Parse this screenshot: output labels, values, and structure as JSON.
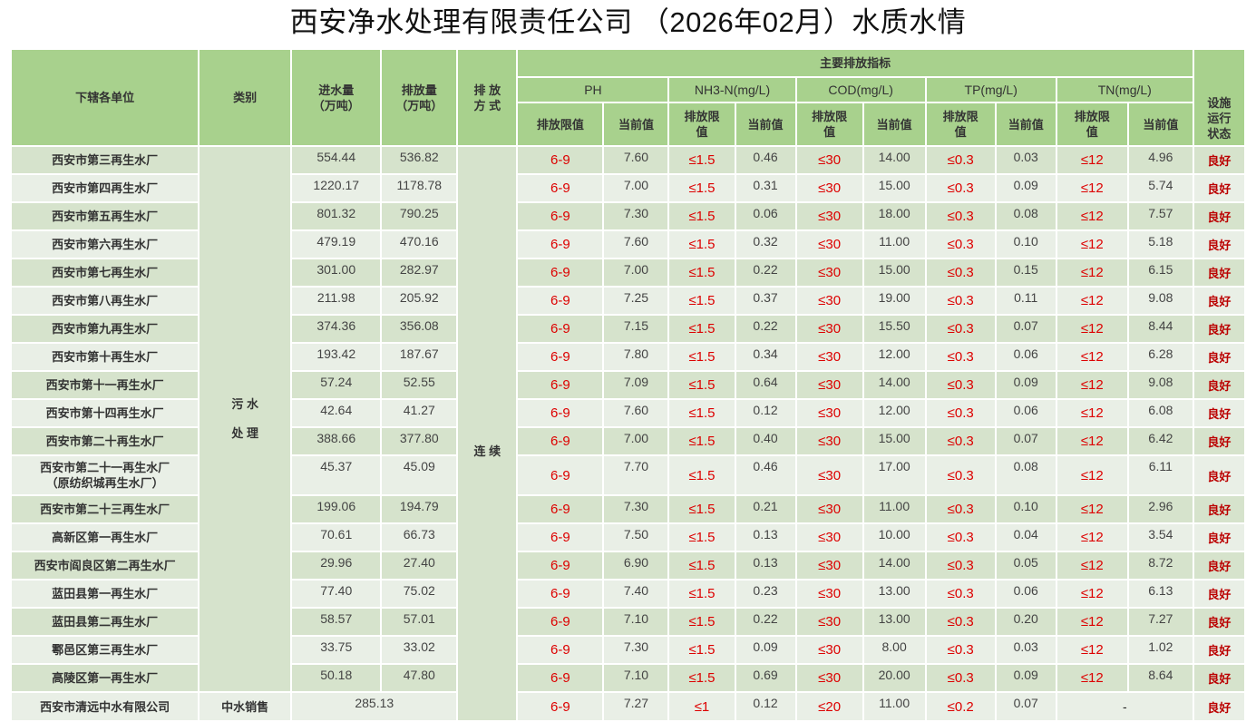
{
  "title": "西安净水处理有限责任公司 （2026年02月）水质水情",
  "headers": {
    "unit": "下辖各单位",
    "category": "类别",
    "inflow": "进水量\n（万吨）",
    "outflow": "排放量\n（万吨）",
    "method": "排 放\n方 式",
    "indicators": "主要排放指标",
    "ph": "PH",
    "nh3": "NH3-N(mg/L)",
    "cod": "COD(mg/L)",
    "tp": "TP(mg/L)",
    "tn": "TN(mg/L)",
    "limit": "排放限值",
    "limit_wrap": "排放限\n值",
    "current": "当前值",
    "status": "设施\n运行\n状态"
  },
  "category_sewage": "污 水\n\n处 理",
  "method_value": "连 续",
  "limits": {
    "ph": "6-9",
    "nh3": "≤1.5",
    "cod": "≤30",
    "tp": "≤0.3",
    "tn": "≤12"
  },
  "rows": [
    {
      "name": "西安市第三再生水厂",
      "in": "554.44",
      "out": "536.82",
      "ph": "7.60",
      "nh3": "0.46",
      "cod": "14.00",
      "tp": "0.03",
      "tn": "4.96",
      "status": "良好"
    },
    {
      "name": "西安市第四再生水厂",
      "in": "1220.17",
      "out": "1178.78",
      "ph": "7.00",
      "nh3": "0.31",
      "cod": "15.00",
      "tp": "0.09",
      "tn": "5.74",
      "status": "良好"
    },
    {
      "name": "西安市第五再生水厂",
      "in": "801.32",
      "out": "790.25",
      "ph": "7.30",
      "nh3": "0.06",
      "cod": "18.00",
      "tp": "0.08",
      "tn": "7.57",
      "status": "良好"
    },
    {
      "name": "西安市第六再生水厂",
      "in": "479.19",
      "out": "470.16",
      "ph": "7.60",
      "nh3": "0.32",
      "cod": "11.00",
      "tp": "0.10",
      "tn": "5.18",
      "status": "良好"
    },
    {
      "name": "西安市第七再生水厂",
      "in": "301.00",
      "out": "282.97",
      "ph": "7.00",
      "nh3": "0.22",
      "cod": "15.00",
      "tp": "0.15",
      "tn": "6.15",
      "status": "良好"
    },
    {
      "name": "西安市第八再生水厂",
      "in": "211.98",
      "out": "205.92",
      "ph": "7.25",
      "nh3": "0.37",
      "cod": "19.00",
      "tp": "0.11",
      "tn": "9.08",
      "status": "良好"
    },
    {
      "name": "西安市第九再生水厂",
      "in": "374.36",
      "out": "356.08",
      "ph": "7.15",
      "nh3": "0.22",
      "cod": "15.50",
      "tp": "0.07",
      "tn": "8.44",
      "status": "良好"
    },
    {
      "name": "西安市第十再生水厂",
      "in": "193.42",
      "out": "187.67",
      "ph": "7.80",
      "nh3": "0.34",
      "cod": "12.00",
      "tp": "0.06",
      "tn": "6.28",
      "status": "良好"
    },
    {
      "name": "西安市第十一再生水厂",
      "in": "57.24",
      "out": "52.55",
      "ph": "7.09",
      "nh3": "0.64",
      "cod": "14.00",
      "tp": "0.09",
      "tn": "9.08",
      "status": "良好"
    },
    {
      "name": "西安市第十四再生水厂",
      "in": "42.64",
      "out": "41.27",
      "ph": "7.60",
      "nh3": "0.12",
      "cod": "12.00",
      "tp": "0.06",
      "tn": "6.08",
      "status": "良好"
    },
    {
      "name": "西安市第二十再生水厂",
      "in": "388.66",
      "out": "377.80",
      "ph": "7.00",
      "nh3": "0.40",
      "cod": "15.00",
      "tp": "0.07",
      "tn": "6.42",
      "status": "良好"
    },
    {
      "name": "西安市第二十一再生水厂\n（原纺织城再生水厂）",
      "in": "45.37",
      "out": "45.09",
      "ph": "7.70",
      "nh3": "0.46",
      "cod": "17.00",
      "tp": "0.08",
      "tn": "6.11",
      "status": "良好"
    },
    {
      "name": "西安市第二十三再生水厂",
      "in": "199.06",
      "out": "194.79",
      "ph": "7.30",
      "nh3": "0.21",
      "cod": "11.00",
      "tp": "0.10",
      "tn": "2.96",
      "status": "良好"
    },
    {
      "name": "高新区第一再生水厂",
      "in": "70.61",
      "out": "66.73",
      "ph": "7.50",
      "nh3": "0.13",
      "cod": "10.00",
      "tp": "0.04",
      "tn": "3.54",
      "status": "良好"
    },
    {
      "name": "西安市阎良区第二再生水厂",
      "in": "29.96",
      "out": "27.40",
      "ph": "6.90",
      "nh3": "0.13",
      "cod": "14.00",
      "tp": "0.05",
      "tn": "8.72",
      "status": "良好"
    },
    {
      "name": "蓝田县第一再生水厂",
      "in": "77.40",
      "out": "75.02",
      "ph": "7.40",
      "nh3": "0.23",
      "cod": "13.00",
      "tp": "0.06",
      "tn": "6.13",
      "status": "良好"
    },
    {
      "name": "蓝田县第二再生水厂",
      "in": "58.57",
      "out": "57.01",
      "ph": "7.10",
      "nh3": "0.22",
      "cod": "13.00",
      "tp": "0.20",
      "tn": "7.27",
      "status": "良好"
    },
    {
      "name": "鄠邑区第三再生水厂",
      "in": "33.75",
      "out": "33.02",
      "ph": "7.30",
      "nh3": "0.09",
      "cod": "8.00",
      "tp": "0.03",
      "tn": "1.02",
      "status": "良好"
    },
    {
      "name": "高陵区第一再生水厂",
      "in": "50.18",
      "out": "47.80",
      "ph": "7.10",
      "nh3": "0.69",
      "cod": "20.00",
      "tp": "0.09",
      "tn": "8.64",
      "status": "良好"
    }
  ],
  "last_row": {
    "name": "西安市清远中水有限公司",
    "category": "中水销售",
    "volume": "285.13",
    "ph_limit": "6-9",
    "ph": "7.27",
    "nh3_limit": "≤1",
    "nh3": "0.12",
    "cod_limit": "≤20",
    "cod": "11.00",
    "tp_limit": "≤0.2",
    "tp": "0.07",
    "tn": "-",
    "status": "良好"
  },
  "row_heights": [
    29,
    28,
    27,
    27,
    26,
    28,
    29,
    29,
    29,
    29,
    29,
    44,
    28,
    29,
    30,
    28,
    27,
    27,
    28,
    32
  ]
}
